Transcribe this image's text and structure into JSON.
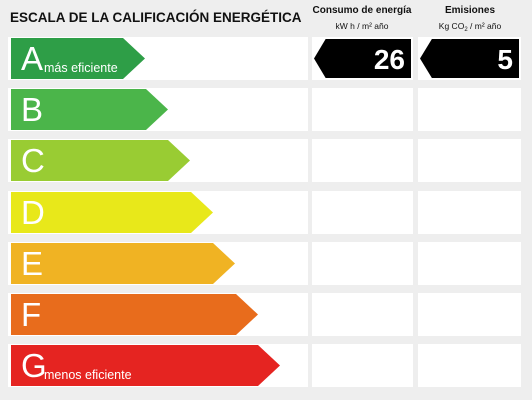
{
  "title": "ESCALA DE LA CALIFICACIÓN ENERGÉTICA",
  "columns": {
    "energy": {
      "heading": "Consumo de energía",
      "unit": "kW h / m² año"
    },
    "emissions": {
      "heading": "Emisiones",
      "unit_prefix": "Kg CO",
      "unit_sub": "2",
      "unit_suffix": " / m² año"
    }
  },
  "classes": [
    {
      "letter": "A",
      "label": "más eficiente",
      "color": "#2e9e47"
    },
    {
      "letter": "B",
      "label": "",
      "color": "#4bb54a"
    },
    {
      "letter": "C",
      "label": "",
      "color": "#99cc33"
    },
    {
      "letter": "D",
      "label": "",
      "color": "#e8e81a"
    },
    {
      "letter": "E",
      "label": "",
      "color": "#f0b323"
    },
    {
      "letter": "F",
      "label": "",
      "color": "#e86c1c"
    },
    {
      "letter": "G",
      "label": "menos eficiente",
      "color": "#e52421"
    }
  ],
  "rating": {
    "class": "A",
    "energy_value": "26",
    "emissions_value": "5"
  }
}
